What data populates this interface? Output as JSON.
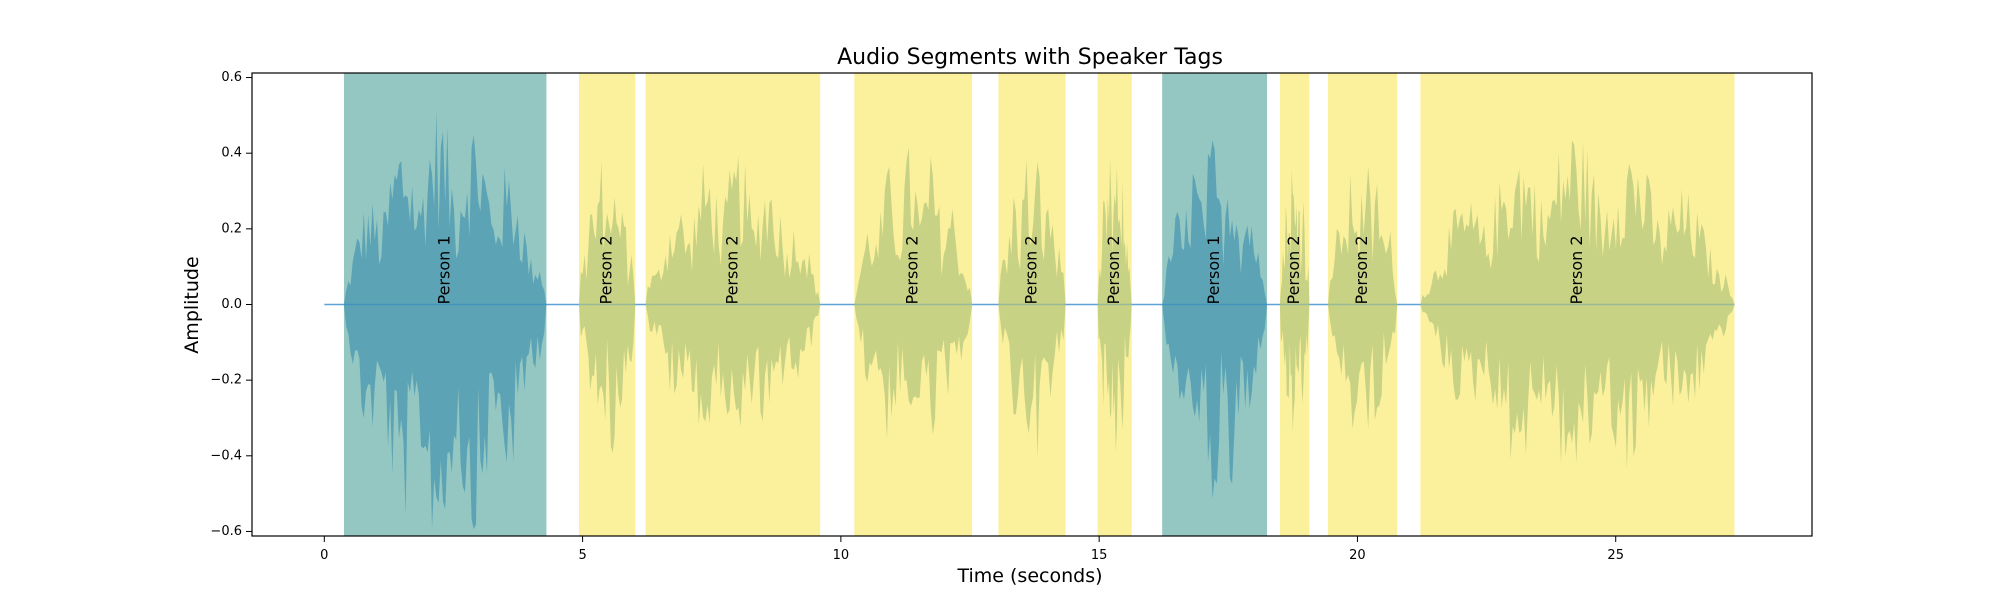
{
  "chart_data": {
    "type": "area",
    "title": "Audio Segments with Speaker Tags",
    "xlabel": "Time (seconds)",
    "ylabel": "Amplitude",
    "xlim": [
      -1.4,
      28.8
    ],
    "ylim": [
      -0.612,
      0.612
    ],
    "x_ticks": [
      0,
      5,
      10,
      15,
      20,
      25
    ],
    "y_ticks": [
      -0.6,
      -0.4,
      -0.2,
      0.0,
      0.2,
      0.4,
      0.6
    ],
    "y_tick_labels": [
      "−0.6",
      "−0.4",
      "−0.2",
      "0.0",
      "0.2",
      "0.4",
      "0.6"
    ],
    "grid": false,
    "legend": "none",
    "colors": {
      "waveform": "#5fa2d6",
      "person1_span": "#2a9086",
      "person2_span": "#f8e34a",
      "person1_overlay": "#2e86ab",
      "person2_overlay": "#b2c47a"
    },
    "segments": [
      {
        "speaker": "Person 1",
        "start": 0.38,
        "end": 4.3,
        "peak": 0.55
      },
      {
        "speaker": "Person 2",
        "start": 4.93,
        "end": 6.02,
        "peak": 0.42
      },
      {
        "speaker": "Person 2",
        "start": 6.22,
        "end": 9.6,
        "peak": 0.42
      },
      {
        "speaker": "Person 2",
        "start": 10.26,
        "end": 12.54,
        "peak": 0.43
      },
      {
        "speaker": "Person 2",
        "start": 13.05,
        "end": 14.35,
        "peak": 0.42
      },
      {
        "speaker": "Person 2",
        "start": 14.97,
        "end": 15.63,
        "peak": 0.42
      },
      {
        "speaker": "Person 1",
        "start": 16.22,
        "end": 18.25,
        "peak": 0.46
      },
      {
        "speaker": "Person 2",
        "start": 18.5,
        "end": 19.07,
        "peak": 0.42
      },
      {
        "speaker": "Person 2",
        "start": 19.43,
        "end": 20.77,
        "peak": 0.42
      },
      {
        "speaker": "Person 2",
        "start": 21.22,
        "end": 27.3,
        "peak": 0.49
      }
    ]
  }
}
